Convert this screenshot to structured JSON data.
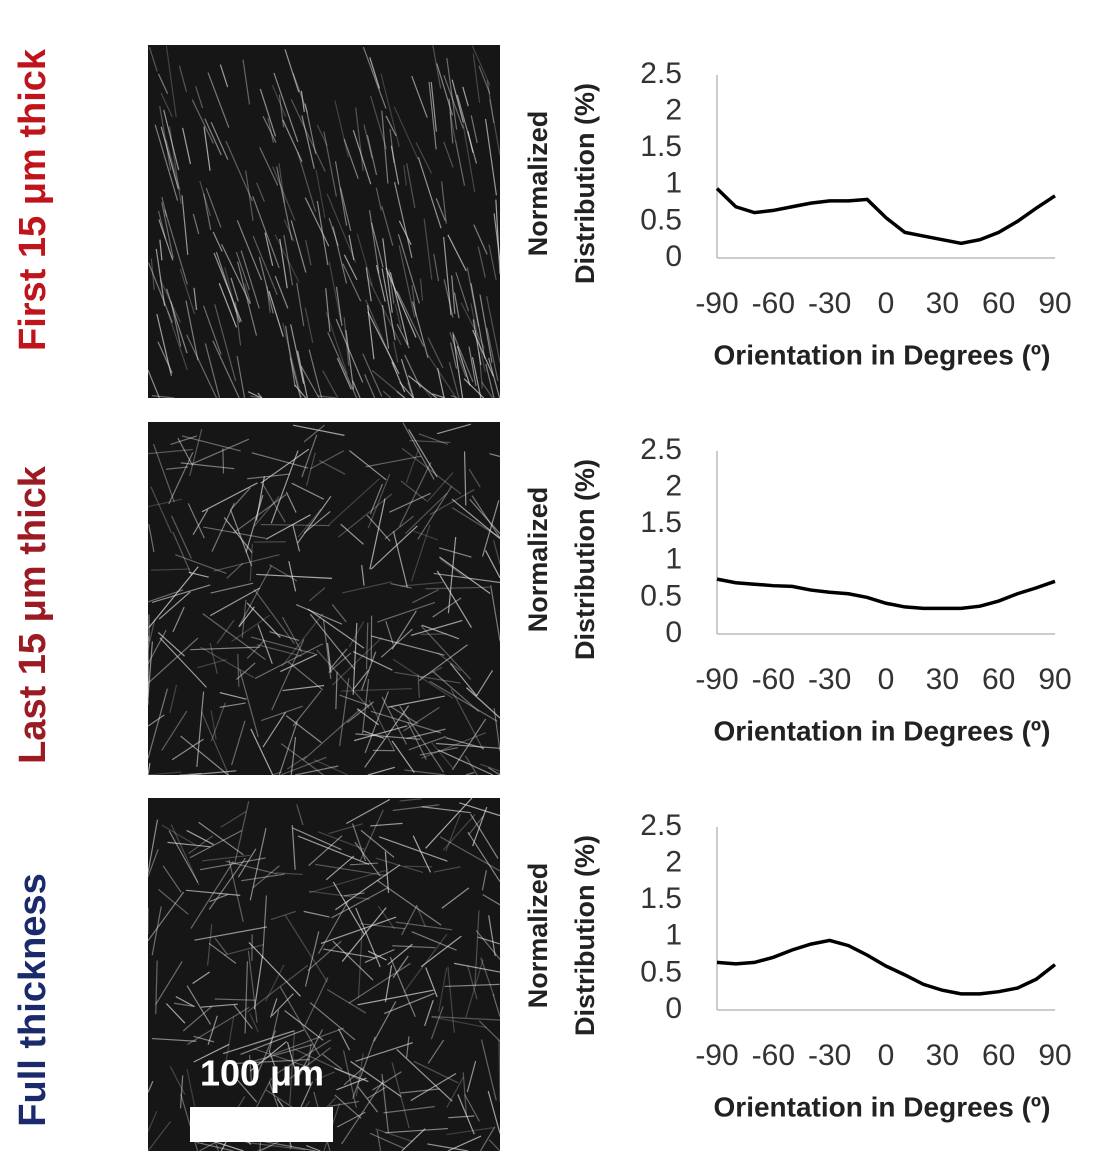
{
  "panels": [
    {
      "label": "First 15 μm thick",
      "label_color": "#c0141c"
    },
    {
      "label": "Last 15 μm thick",
      "label_color": "#9c1a22"
    },
    {
      "label": "Full thickness",
      "label_color": "#1b2a6b"
    }
  ],
  "scale_bar_label": "100 μm",
  "chart_data": [
    {
      "type": "line",
      "xlabel": "Orientation in Degrees (º)",
      "ylabel": [
        "Normalized",
        "Distribution (%)"
      ],
      "x": [
        -90,
        -80,
        -70,
        -60,
        -50,
        -40,
        -30,
        -20,
        -10,
        0,
        10,
        20,
        30,
        40,
        50,
        60,
        70,
        80,
        90
      ],
      "series": [
        {
          "color": "#000000",
          "values": [
            0.95,
            0.7,
            0.62,
            0.65,
            0.7,
            0.75,
            0.78,
            0.78,
            0.8,
            0.55,
            0.35,
            0.3,
            0.25,
            0.2,
            0.25,
            0.35,
            0.5,
            0.68,
            0.85
          ]
        }
      ],
      "xlim": [
        -90,
        90
      ],
      "xticks": [
        -90,
        -60,
        -30,
        0,
        30,
        60,
        90
      ],
      "ylim": [
        0,
        2.5
      ],
      "yticks": [
        0,
        0.5,
        1,
        1.5,
        2,
        2.5
      ]
    },
    {
      "type": "line",
      "xlabel": "Orientation in Degrees (º)",
      "ylabel": [
        "Normalized",
        "Distribution (%)"
      ],
      "x": [
        -90,
        -80,
        -70,
        -60,
        -50,
        -40,
        -30,
        -20,
        -10,
        0,
        10,
        20,
        30,
        40,
        50,
        60,
        70,
        80,
        90
      ],
      "series": [
        {
          "color": "#000000",
          "values": [
            0.75,
            0.7,
            0.68,
            0.66,
            0.65,
            0.6,
            0.57,
            0.55,
            0.5,
            0.42,
            0.37,
            0.35,
            0.35,
            0.35,
            0.38,
            0.45,
            0.55,
            0.63,
            0.72
          ]
        }
      ],
      "xlim": [
        -90,
        90
      ],
      "xticks": [
        -90,
        -60,
        -30,
        0,
        30,
        60,
        90
      ],
      "ylim": [
        0,
        2.5
      ],
      "yticks": [
        0,
        0.5,
        1,
        1.5,
        2,
        2.5
      ]
    },
    {
      "type": "line",
      "xlabel": "Orientation in Degrees (º)",
      "ylabel": [
        "Normalized",
        "Distribution (%)"
      ],
      "x": [
        -90,
        -80,
        -70,
        -60,
        -50,
        -40,
        -30,
        -20,
        -10,
        0,
        10,
        20,
        30,
        40,
        50,
        60,
        70,
        80,
        90
      ],
      "series": [
        {
          "color": "#000000",
          "values": [
            0.65,
            0.63,
            0.65,
            0.72,
            0.82,
            0.9,
            0.95,
            0.88,
            0.75,
            0.6,
            0.48,
            0.35,
            0.27,
            0.22,
            0.22,
            0.25,
            0.3,
            0.42,
            0.62
          ]
        }
      ],
      "xlim": [
        -90,
        90
      ],
      "xticks": [
        -90,
        -60,
        -30,
        0,
        30,
        60,
        90
      ],
      "ylim": [
        0,
        2.5
      ],
      "yticks": [
        0,
        0.5,
        1,
        1.5,
        2,
        2.5
      ]
    }
  ]
}
